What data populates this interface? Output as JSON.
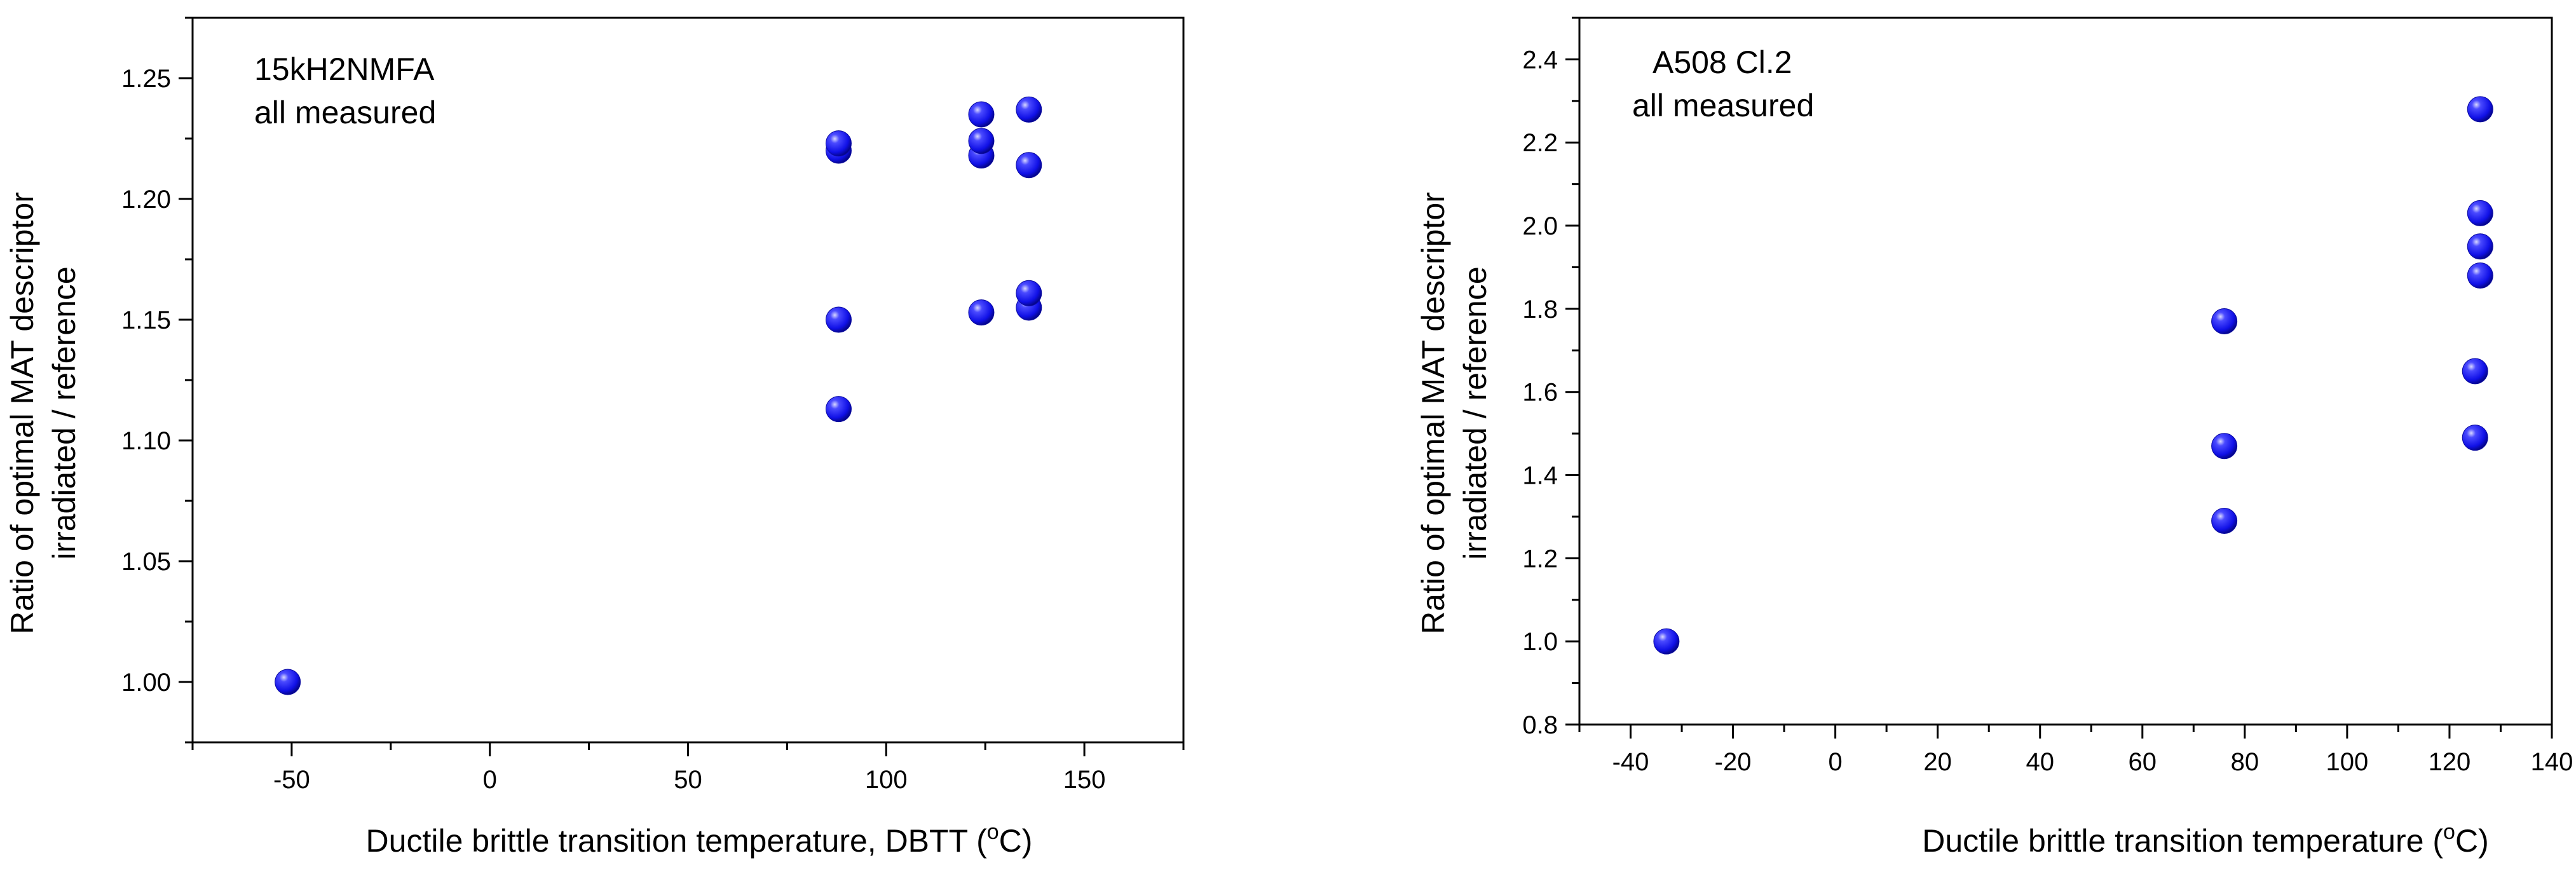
{
  "chart_data": [
    {
      "type": "scatter",
      "title": "",
      "annotations": [
        "15kH2NMFA",
        "all measured"
      ],
      "xlabel_prefix": "Ductile brittle transition temperature, DBTT (",
      "xlabel_sup": "o",
      "xlabel_suffix": "C)",
      "ylabel_lines": [
        "Ratio of optimal MAT descriptor",
        "irradiated / reference"
      ],
      "xlim": [
        -75,
        175
      ],
      "ylim": [
        0.975,
        1.275
      ],
      "xticks": [
        -50,
        0,
        50,
        100,
        150
      ],
      "xtick_labels": [
        "-50",
        "0",
        "50",
        "100",
        "150"
      ],
      "yticks": [
        1.0,
        1.05,
        1.1,
        1.15,
        1.2,
        1.25
      ],
      "ytick_labels": [
        "1.00",
        "1.05",
        "1.10",
        "1.15",
        "1.20",
        "1.25"
      ],
      "grid": false,
      "marker_color": "#1010e6",
      "series": [
        {
          "name": "15kH2NMFA",
          "x": [
            -51,
            88,
            88,
            88,
            88,
            124,
            124,
            124,
            124,
            136,
            136,
            136,
            136
          ],
          "y": [
            1.0,
            1.113,
            1.15,
            1.22,
            1.223,
            1.153,
            1.218,
            1.224,
            1.235,
            1.155,
            1.161,
            1.214,
            1.237
          ]
        }
      ]
    },
    {
      "type": "scatter",
      "title": "",
      "annotations": [
        "A508 Cl.2",
        "all measured"
      ],
      "xlabel_prefix": "Ductile brittle transition temperature (",
      "xlabel_sup": "o",
      "xlabel_suffix": "C)",
      "ylabel_lines": [
        "Ratio of optimal MAT descriptor",
        "irradiated / reference"
      ],
      "xlim": [
        -50,
        140
      ],
      "ylim": [
        0.8,
        2.5
      ],
      "xticks": [
        -40,
        -20,
        0,
        20,
        40,
        60,
        80,
        100,
        120,
        140
      ],
      "xtick_labels": [
        "-40",
        "-20",
        "0",
        "20",
        "40",
        "60",
        "80",
        "100",
        "120",
        "140"
      ],
      "yticks": [
        0.8,
        1.0,
        1.2,
        1.4,
        1.6,
        1.8,
        2.0,
        2.2,
        2.4
      ],
      "ytick_labels": [
        "0.8",
        "1.0",
        "1.2",
        "1.4",
        "1.6",
        "1.8",
        "2.0",
        "2.2",
        "2.4"
      ],
      "grid": false,
      "marker_color": "#1010e6",
      "series": [
        {
          "name": "A508 Cl.2",
          "x": [
            -33,
            76,
            76,
            76,
            125,
            125,
            126,
            126,
            126,
            126
          ],
          "y": [
            1.0,
            1.29,
            1.47,
            1.77,
            1.49,
            1.65,
            1.88,
            1.95,
            2.03,
            2.28
          ]
        }
      ]
    }
  ]
}
